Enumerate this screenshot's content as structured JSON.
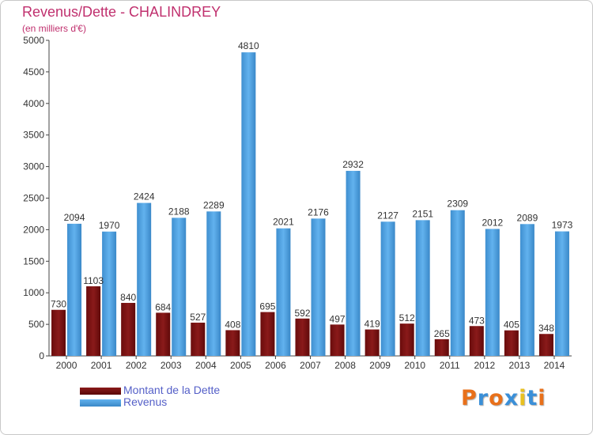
{
  "title": "Revenus/Dette - CHALINDREY",
  "subtitle": "(en milliers d'€)",
  "legend": {
    "debt_label": "Montant de la Dette",
    "revenue_label": "Revenus"
  },
  "logo_text": "Proxiti",
  "colors": {
    "title": "#c0306e",
    "debt": "#7a1010",
    "revenue": "#4a9ede",
    "legend_text": "#5560c8",
    "logo": [
      "#e8701a",
      "#3a8fd8",
      "#e8701a",
      "#3a8fd8",
      "#e8c020",
      "#3a8fd8",
      "#e8701a"
    ]
  },
  "chart_data": {
    "type": "bar",
    "categories": [
      "2000",
      "2001",
      "2002",
      "2003",
      "2004",
      "2005",
      "2006",
      "2007",
      "2008",
      "2009",
      "2010",
      "2011",
      "2012",
      "2013",
      "2014"
    ],
    "series": [
      {
        "name": "Montant de la Dette",
        "values": [
          730,
          1103,
          840,
          684,
          527,
          408,
          695,
          592,
          497,
          419,
          512,
          265,
          473,
          405,
          348
        ]
      },
      {
        "name": "Revenus",
        "values": [
          2094,
          1970,
          2424,
          2188,
          2289,
          4810,
          2021,
          2176,
          2932,
          2127,
          2151,
          2309,
          2012,
          2089,
          1973
        ]
      }
    ],
    "ylim": [
      0,
      5000
    ],
    "yticks": [
      0,
      500,
      1000,
      1500,
      2000,
      2500,
      3000,
      3500,
      4000,
      4500,
      5000
    ],
    "grid": false,
    "legend_position": "bottom-left"
  }
}
